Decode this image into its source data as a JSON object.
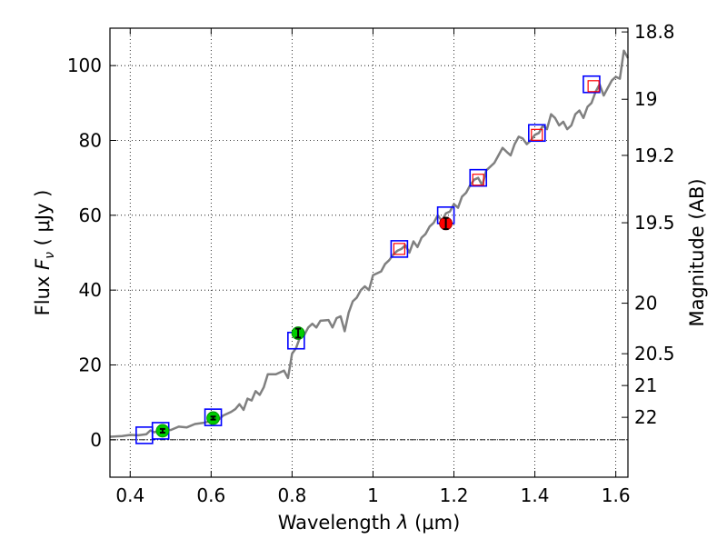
{
  "chart_data": {
    "type": "line",
    "xlabel_prefix": "Wavelength",
    "xlabel_symbol": "λ",
    "xlabel_unit": "(μm)",
    "ylabel_prefix": "Flux",
    "ylabel_symbol": "F",
    "ylabel_sub": "ν",
    "ylabel_unit": "( μJy )",
    "y2label": "Magnitude (AB)",
    "xlim": [
      0.35,
      1.63
    ],
    "ylim": [
      -10,
      110
    ],
    "xticks": [
      0.4,
      0.6,
      0.8,
      1.0,
      1.2,
      1.4,
      1.6
    ],
    "xtick_labels": [
      "0.4",
      "0.6",
      "0.8",
      "1",
      "1.2",
      "1.4",
      "1.6"
    ],
    "yticks": [
      0,
      20,
      40,
      60,
      80,
      100
    ],
    "ytick_labels": [
      "0",
      "20",
      "40",
      "60",
      "80",
      "100"
    ],
    "grid": true,
    "zero_line": 0,
    "mag_ticks": [
      {
        "label": "18.8",
        "flux": 109
      },
      {
        "label": "19",
        "flux": 91
      },
      {
        "label": "19.2",
        "flux": 76
      },
      {
        "label": "19.5",
        "flux": 58
      },
      {
        "label": "20",
        "flux": 36.5
      },
      {
        "label": "20.5",
        "flux": 23
      },
      {
        "label": "21",
        "flux": 14.5
      },
      {
        "label": "22",
        "flux": 6
      }
    ],
    "series": [
      {
        "name": "model spectrum",
        "kind": "line",
        "color": "#808080",
        "points": [
          [
            0.35,
            0.8
          ],
          [
            0.38,
            1.0
          ],
          [
            0.4,
            1.3
          ],
          [
            0.42,
            1.2
          ],
          [
            0.44,
            1.5
          ],
          [
            0.45,
            2.5
          ],
          [
            0.46,
            2.0
          ],
          [
            0.48,
            2.8
          ],
          [
            0.5,
            2.6
          ],
          [
            0.52,
            3.5
          ],
          [
            0.54,
            3.3
          ],
          [
            0.56,
            4.2
          ],
          [
            0.58,
            4.5
          ],
          [
            0.6,
            5.0
          ],
          [
            0.62,
            5.5
          ],
          [
            0.63,
            6.5
          ],
          [
            0.65,
            7.5
          ],
          [
            0.66,
            8.2
          ],
          [
            0.67,
            9.5
          ],
          [
            0.68,
            8.0
          ],
          [
            0.69,
            11.0
          ],
          [
            0.7,
            10.5
          ],
          [
            0.71,
            13.0
          ],
          [
            0.72,
            12.0
          ],
          [
            0.73,
            14.0
          ],
          [
            0.74,
            17.5
          ],
          [
            0.76,
            17.5
          ],
          [
            0.78,
            18.5
          ],
          [
            0.79,
            16.5
          ],
          [
            0.8,
            23.0
          ],
          [
            0.81,
            24.5
          ],
          [
            0.82,
            27.5
          ],
          [
            0.83,
            28.0
          ],
          [
            0.84,
            30.0
          ],
          [
            0.85,
            31.0
          ],
          [
            0.86,
            30.0
          ],
          [
            0.87,
            31.8
          ],
          [
            0.89,
            32.0
          ],
          [
            0.9,
            30.0
          ],
          [
            0.91,
            32.5
          ],
          [
            0.92,
            33.0
          ],
          [
            0.93,
            29.0
          ],
          [
            0.94,
            34.0
          ],
          [
            0.95,
            37.0
          ],
          [
            0.96,
            38.0
          ],
          [
            0.97,
            40.0
          ],
          [
            0.98,
            41.0
          ],
          [
            0.99,
            40.0
          ],
          [
            1.0,
            44.0
          ],
          [
            1.02,
            45.0
          ],
          [
            1.03,
            47.0
          ],
          [
            1.04,
            48.0
          ],
          [
            1.05,
            49.5
          ],
          [
            1.06,
            50.5
          ],
          [
            1.07,
            51.0
          ],
          [
            1.08,
            52.0
          ],
          [
            1.09,
            50.0
          ],
          [
            1.1,
            53.0
          ],
          [
            1.11,
            51.5
          ],
          [
            1.12,
            54.0
          ],
          [
            1.13,
            55.0
          ],
          [
            1.14,
            57.0
          ],
          [
            1.15,
            58.0
          ],
          [
            1.16,
            60.0
          ],
          [
            1.17,
            58.5
          ],
          [
            1.18,
            60.5
          ],
          [
            1.19,
            61.0
          ],
          [
            1.2,
            63.0
          ],
          [
            1.21,
            62.0
          ],
          [
            1.22,
            65.0
          ],
          [
            1.23,
            66.0
          ],
          [
            1.24,
            68.0
          ],
          [
            1.25,
            69.5
          ],
          [
            1.26,
            70.0
          ],
          [
            1.27,
            68.0
          ],
          [
            1.28,
            72.0
          ],
          [
            1.29,
            73.0
          ],
          [
            1.3,
            74.0
          ],
          [
            1.31,
            76.0
          ],
          [
            1.32,
            78.0
          ],
          [
            1.33,
            77.0
          ],
          [
            1.34,
            76.0
          ],
          [
            1.35,
            79.0
          ],
          [
            1.36,
            81.0
          ],
          [
            1.37,
            80.5
          ],
          [
            1.38,
            79.0
          ],
          [
            1.39,
            80.0
          ],
          [
            1.4,
            81.5
          ],
          [
            1.41,
            82.0
          ],
          [
            1.42,
            84.0
          ],
          [
            1.43,
            83.0
          ],
          [
            1.44,
            87.0
          ],
          [
            1.45,
            86.0
          ],
          [
            1.46,
            84.0
          ],
          [
            1.47,
            85.0
          ],
          [
            1.48,
            83.0
          ],
          [
            1.49,
            84.0
          ],
          [
            1.5,
            87.0
          ],
          [
            1.51,
            88.0
          ],
          [
            1.52,
            86.0
          ],
          [
            1.53,
            89.0
          ],
          [
            1.54,
            90.0
          ],
          [
            1.55,
            93.0
          ],
          [
            1.56,
            95.0
          ],
          [
            1.57,
            92.0
          ],
          [
            1.58,
            94.0
          ],
          [
            1.59,
            96.0
          ],
          [
            1.6,
            97.0
          ],
          [
            1.61,
            96.5
          ],
          [
            1.62,
            104.0
          ],
          [
            1.63,
            102.0
          ]
        ]
      },
      {
        "name": "blue squares",
        "kind": "marker",
        "color": "#0000ff",
        "points": [
          [
            0.435,
            1.2
          ],
          [
            0.475,
            2.4
          ],
          [
            0.605,
            6.0
          ],
          [
            0.81,
            26.5
          ],
          [
            1.065,
            51.0
          ],
          [
            1.18,
            60.0
          ],
          [
            1.26,
            70.0
          ],
          [
            1.405,
            82.0
          ],
          [
            1.54,
            95.0
          ]
        ]
      },
      {
        "name": "red squares",
        "kind": "marker",
        "color": "#ff0000",
        "points": [
          [
            1.065,
            51.0
          ],
          [
            1.26,
            69.5
          ],
          [
            1.405,
            81.5
          ],
          [
            1.545,
            94.5
          ]
        ]
      },
      {
        "name": "green points",
        "kind": "errorbar",
        "color": "#00cc00",
        "points": [
          [
            0.48,
            2.4,
            0.5
          ],
          [
            0.605,
            5.8,
            0.4
          ],
          [
            0.815,
            28.5,
            1.2
          ]
        ]
      },
      {
        "name": "red point",
        "kind": "errorbar",
        "color": "#ff0000",
        "points": [
          [
            1.18,
            57.8,
            1.5
          ]
        ]
      }
    ]
  }
}
